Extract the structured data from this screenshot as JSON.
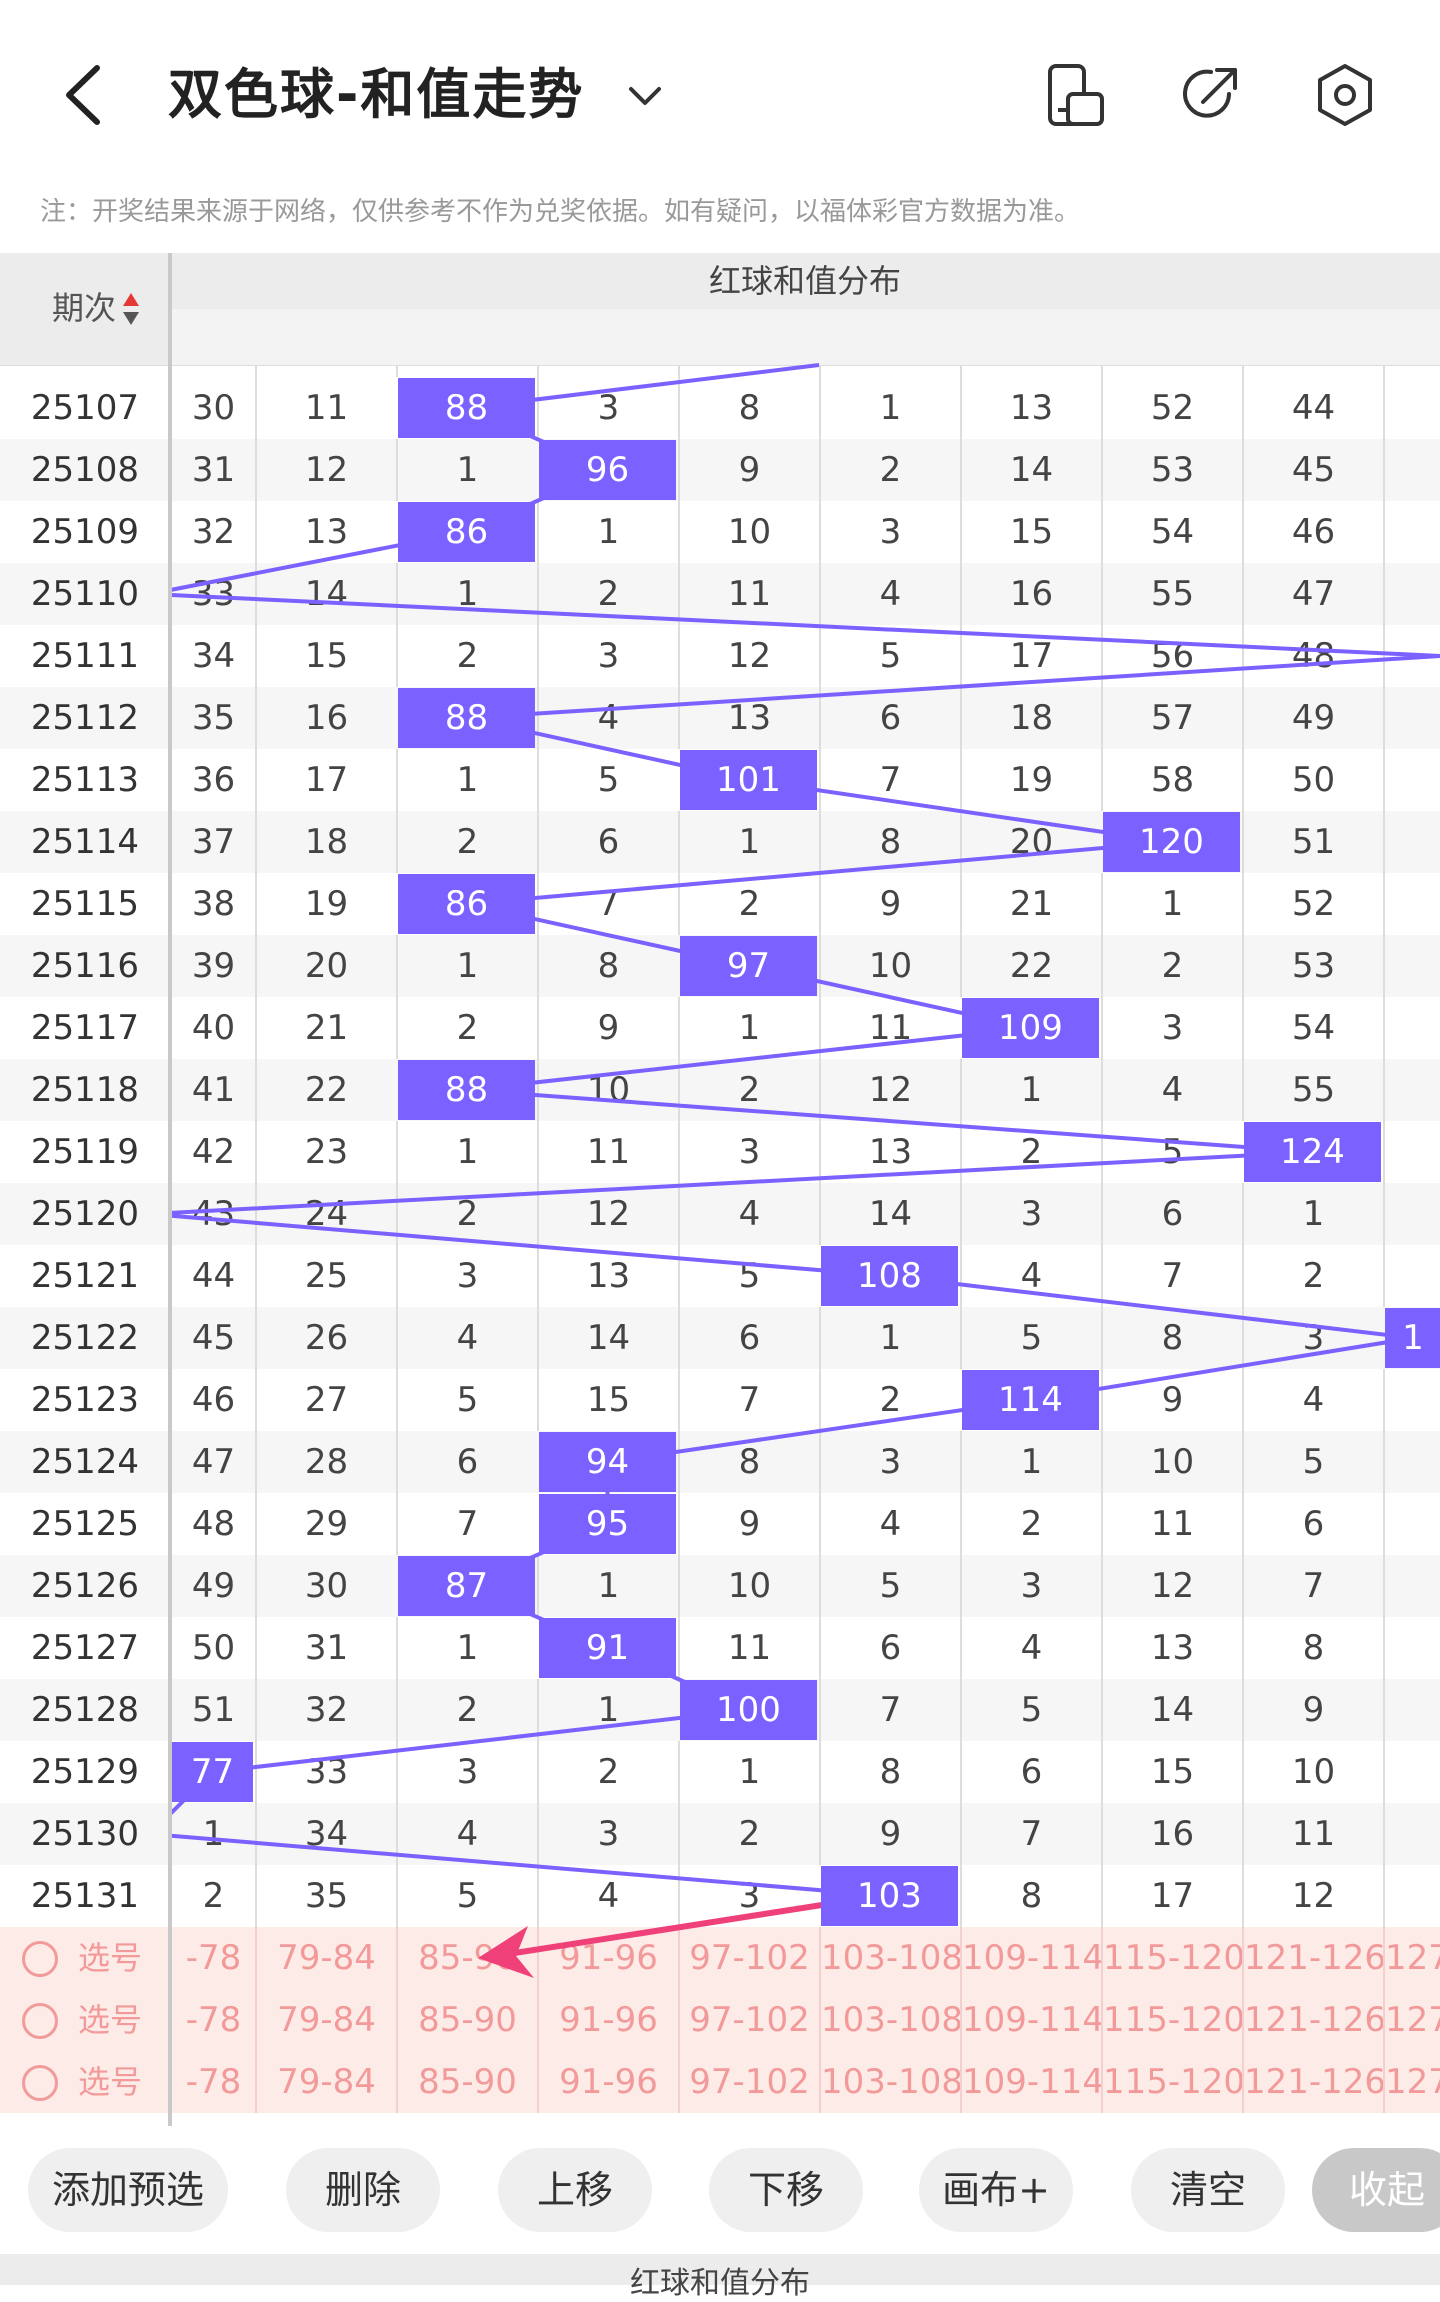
{
  "header": {
    "title": "双色球-和值走势"
  },
  "note": "注：开奖结果来源于网络，仅供参考不作为兑奖依据。如有疑问，以福体彩官方数据为准。",
  "table": {
    "period_label": "期次",
    "group_title": "红球和值分布",
    "columns": [
      "-78",
      "79-84",
      "85-90",
      "91-96",
      "97-102",
      "103-108",
      "109-114",
      "115-120",
      "121-126",
      "127"
    ],
    "rows": [
      {
        "q": "25107",
        "cells": [
          "30",
          "11",
          "88",
          "3",
          "8",
          "1",
          "13",
          "52",
          "44",
          ""
        ],
        "hit": 2
      },
      {
        "q": "25108",
        "cells": [
          "31",
          "12",
          "1",
          "96",
          "9",
          "2",
          "14",
          "53",
          "45",
          ""
        ],
        "hit": 3
      },
      {
        "q": "25109",
        "cells": [
          "32",
          "13",
          "86",
          "1",
          "10",
          "3",
          "15",
          "54",
          "46",
          ""
        ],
        "hit": 2
      },
      {
        "q": "25110",
        "cells": [
          "33",
          "14",
          "1",
          "2",
          "11",
          "4",
          "16",
          "55",
          "47",
          ""
        ],
        "hit": -1
      },
      {
        "q": "25111",
        "cells": [
          "34",
          "15",
          "2",
          "3",
          "12",
          "5",
          "17",
          "56",
          "48",
          ""
        ],
        "hit": -1
      },
      {
        "q": "25112",
        "cells": [
          "35",
          "16",
          "88",
          "4",
          "13",
          "6",
          "18",
          "57",
          "49",
          ""
        ],
        "hit": 2
      },
      {
        "q": "25113",
        "cells": [
          "36",
          "17",
          "1",
          "5",
          "101",
          "7",
          "19",
          "58",
          "50",
          ""
        ],
        "hit": 4
      },
      {
        "q": "25114",
        "cells": [
          "37",
          "18",
          "2",
          "6",
          "1",
          "8",
          "20",
          "120",
          "51",
          ""
        ],
        "hit": 7
      },
      {
        "q": "25115",
        "cells": [
          "38",
          "19",
          "86",
          "7",
          "2",
          "9",
          "21",
          "1",
          "52",
          ""
        ],
        "hit": 2
      },
      {
        "q": "25116",
        "cells": [
          "39",
          "20",
          "1",
          "8",
          "97",
          "10",
          "22",
          "2",
          "53",
          ""
        ],
        "hit": 4
      },
      {
        "q": "25117",
        "cells": [
          "40",
          "21",
          "2",
          "9",
          "1",
          "11",
          "109",
          "3",
          "54",
          ""
        ],
        "hit": 6
      },
      {
        "q": "25118",
        "cells": [
          "41",
          "22",
          "88",
          "10",
          "2",
          "12",
          "1",
          "4",
          "55",
          ""
        ],
        "hit": 2
      },
      {
        "q": "25119",
        "cells": [
          "42",
          "23",
          "1",
          "11",
          "3",
          "13",
          "2",
          "5",
          "124",
          ""
        ],
        "hit": 8
      },
      {
        "q": "25120",
        "cells": [
          "43",
          "24",
          "2",
          "12",
          "4",
          "14",
          "3",
          "6",
          "1",
          ""
        ],
        "hit": -1
      },
      {
        "q": "25121",
        "cells": [
          "44",
          "25",
          "3",
          "13",
          "5",
          "108",
          "4",
          "7",
          "2",
          ""
        ],
        "hit": 5
      },
      {
        "q": "25122",
        "cells": [
          "45",
          "26",
          "4",
          "14",
          "6",
          "1",
          "5",
          "8",
          "3",
          "1"
        ],
        "hit": 9
      },
      {
        "q": "25123",
        "cells": [
          "46",
          "27",
          "5",
          "15",
          "7",
          "2",
          "114",
          "9",
          "4",
          ""
        ],
        "hit": 6
      },
      {
        "q": "25124",
        "cells": [
          "47",
          "28",
          "6",
          "94",
          "8",
          "3",
          "1",
          "10",
          "5",
          ""
        ],
        "hit": 3
      },
      {
        "q": "25125",
        "cells": [
          "48",
          "29",
          "7",
          "95",
          "9",
          "4",
          "2",
          "11",
          "6",
          ""
        ],
        "hit": 3
      },
      {
        "q": "25126",
        "cells": [
          "49",
          "30",
          "87",
          "1",
          "10",
          "5",
          "3",
          "12",
          "7",
          ""
        ],
        "hit": 2
      },
      {
        "q": "25127",
        "cells": [
          "50",
          "31",
          "1",
          "91",
          "11",
          "6",
          "4",
          "13",
          "8",
          ""
        ],
        "hit": 3
      },
      {
        "q": "25128",
        "cells": [
          "51",
          "32",
          "2",
          "1",
          "100",
          "7",
          "5",
          "14",
          "9",
          ""
        ],
        "hit": 4
      },
      {
        "q": "25129",
        "cells": [
          "77",
          "33",
          "3",
          "2",
          "1",
          "8",
          "6",
          "15",
          "10",
          ""
        ],
        "hit": 0
      },
      {
        "q": "25130",
        "cells": [
          "1",
          "34",
          "4",
          "3",
          "2",
          "9",
          "7",
          "16",
          "11",
          ""
        ],
        "hit": -1
      },
      {
        "q": "25131",
        "cells": [
          "2",
          "35",
          "5",
          "4",
          "3",
          "103",
          "8",
          "17",
          "12",
          ""
        ],
        "hit": 5
      }
    ],
    "pick_label": "选号",
    "pick_rows": 3
  },
  "toolbar": {
    "add": "添加预选",
    "delete": "删除",
    "up": "上移",
    "down": "下移",
    "canvas": "画布+",
    "clear": "清空",
    "collapse": "收起"
  },
  "footer_title": "红球和值分布",
  "colors": {
    "accent": "#7b61ff",
    "pick_bg": "#fdebe8",
    "pick_text": "#f29a9a",
    "arrow": "#f0407a"
  }
}
